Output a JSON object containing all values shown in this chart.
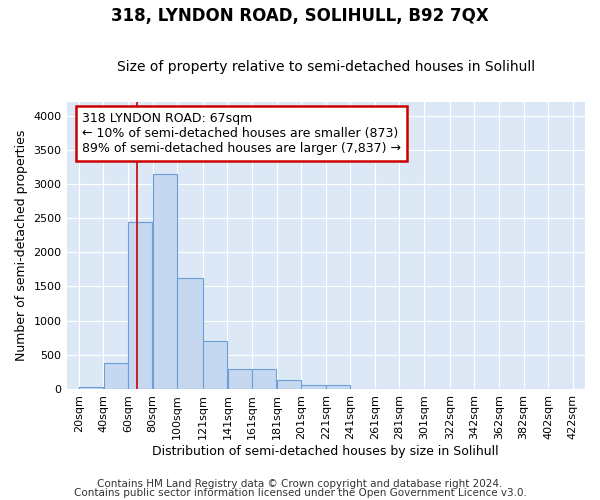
{
  "title": "318, LYNDON ROAD, SOLIHULL, B92 7QX",
  "subtitle": "Size of property relative to semi-detached houses in Solihull",
  "xlabel": "Distribution of semi-detached houses by size in Solihull",
  "ylabel": "Number of semi-detached properties",
  "footnote1": "Contains HM Land Registry data © Crown copyright and database right 2024.",
  "footnote2": "Contains public sector information licensed under the Open Government Licence v3.0.",
  "bar_left_edges": [
    20,
    40,
    60,
    80,
    100,
    121,
    141,
    161,
    181,
    201,
    221,
    241,
    261,
    281,
    301,
    322,
    342,
    362,
    382,
    402
  ],
  "bar_widths": [
    20,
    20,
    20,
    20,
    21,
    20,
    20,
    20,
    20,
    20,
    20,
    20,
    20,
    20,
    21,
    20,
    20,
    20,
    20,
    20
  ],
  "bar_heights": [
    30,
    380,
    2440,
    3150,
    1630,
    700,
    290,
    290,
    125,
    60,
    55,
    0,
    0,
    0,
    0,
    0,
    0,
    0,
    0,
    0
  ],
  "bar_color": "#c5d8f0",
  "bar_edge_color": "#6a9fd8",
  "property_size": 67,
  "pct_smaller": 10,
  "n_smaller": 873,
  "pct_larger": 89,
  "n_larger": 7837,
  "annotation_box_color": "#ffffff",
  "annotation_box_edge_color": "#cc0000",
  "vline_color": "#cc0000",
  "ylim": [
    0,
    4200
  ],
  "yticks": [
    0,
    500,
    1000,
    1500,
    2000,
    2500,
    3000,
    3500,
    4000
  ],
  "x_tick_labels": [
    "20sqm",
    "40sqm",
    "60sqm",
    "80sqm",
    "100sqm",
    "121sqm",
    "141sqm",
    "161sqm",
    "181sqm",
    "201sqm",
    "221sqm",
    "241sqm",
    "261sqm",
    "281sqm",
    "301sqm",
    "322sqm",
    "342sqm",
    "362sqm",
    "382sqm",
    "402sqm",
    "422sqm"
  ],
  "x_tick_positions": [
    20,
    40,
    60,
    80,
    100,
    121,
    141,
    161,
    181,
    201,
    221,
    241,
    261,
    281,
    301,
    322,
    342,
    362,
    382,
    402,
    422
  ],
  "figure_bg_color": "#ffffff",
  "plot_bg_color": "#dce8f5",
  "grid_color": "#ffffff",
  "title_fontsize": 12,
  "subtitle_fontsize": 10,
  "axis_label_fontsize": 9,
  "tick_fontsize": 8,
  "annotation_fontsize": 9,
  "footnote_fontsize": 7.5
}
